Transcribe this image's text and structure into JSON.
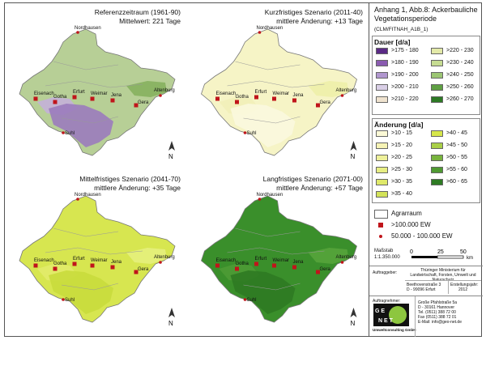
{
  "panels": [
    {
      "title": "Referenzzeitraum (1961-90)",
      "subtitle": "Mittelwert: 221 Tage",
      "fill": "#b7cf96",
      "accent": "#86b05e",
      "south": "#9b7bbd",
      "south2": "#c4b0d8"
    },
    {
      "title": "Kurzfristiges Szenario (2011-40)",
      "subtitle": "mittlere Änderung: +13 Tage",
      "fill": "#f6f4c6",
      "accent": "#eef0a8",
      "south": "#fbf8de",
      "south2": "#f2efb8"
    },
    {
      "title": "Mittelfristiges Szenario (2041-70)",
      "subtitle": "mittlere Änderung: +35 Tage",
      "fill": "#d7e650",
      "accent": "#e6ef7c",
      "south": "#c9dc3c",
      "south2": "#e2eb6a"
    },
    {
      "title": "Langfristiges Szenario (2071-00)",
      "subtitle": "mittlere Änderung: +57 Tage",
      "fill": "#3a8f2b",
      "accent": "#57a43b",
      "south": "#2f7a22",
      "south2": "#4e9b35"
    }
  ],
  "cities": [
    "Nordhausen",
    "Eisenach",
    "Gotha",
    "Erfurt",
    "Weimar",
    "Jena",
    "Gera",
    "Altenburg",
    "Suhl"
  ],
  "north_label": "N",
  "legend": {
    "title": "Anhang 1, Abb.8: Ackerbauliche Vegetationsperiode",
    "model": "(CLM/FITNAH_A1B_1)",
    "dauer_head": "Dauer [d/a]",
    "dauer": [
      {
        "label": ">175 - 180",
        "color": "#5b2a86"
      },
      {
        "label": ">220 - 230",
        "color": "#e3e9a8"
      },
      {
        "label": ">180 - 190",
        "color": "#8a5bb0"
      },
      {
        "label": ">230 - 240",
        "color": "#c6dc92"
      },
      {
        "label": ">190 - 200",
        "color": "#b197cf"
      },
      {
        "label": ">240 - 250",
        "color": "#9cc674"
      },
      {
        "label": ">200 - 210",
        "color": "#d9cfe6"
      },
      {
        "label": ">250 - 260",
        "color": "#5fa043"
      },
      {
        "label": ">210 - 220",
        "color": "#efe3cf"
      },
      {
        "label": ">260 - 270",
        "color": "#2d7a24"
      }
    ],
    "aend_head": "Änderung [d/a]",
    "aend": [
      {
        "label": ">10 - 15",
        "color": "#fbf9d6"
      },
      {
        "label": ">40 - 45",
        "color": "#d6e64a"
      },
      {
        "label": ">15 - 20",
        "color": "#f6f3b5"
      },
      {
        "label": ">45 - 50",
        "color": "#a9cf47"
      },
      {
        "label": ">20 - 25",
        "color": "#eef09a"
      },
      {
        "label": ">50 - 55",
        "color": "#78b43d"
      },
      {
        "label": ">25 - 30",
        "color": "#e7ee83"
      },
      {
        "label": ">55 - 60",
        "color": "#4f9a32"
      },
      {
        "label": ">30 - 35",
        "color": "#dfe96a"
      },
      {
        "label": ">60 - 65",
        "color": "#2e7b23"
      },
      {
        "label": ">35 - 40",
        "color": "#d3e35a"
      }
    ],
    "agrar": "Agrarraum",
    "city_big": ">100.000 EW",
    "city_small": "50.000 - 100.000 EW",
    "massstab": "Maßstab",
    "scale": "1:1.350.000",
    "scale_ticks": [
      "0",
      "25",
      "50"
    ],
    "scale_unit": "km",
    "auftraggeber": "Auftraggeber:",
    "ministry": "Thüringer Ministerium für Landwirtschaft, Forsten, Umwelt und Naturschutz",
    "address": "Beethovenstraße 3\nD - 99096 Erfurt",
    "erstellungsjahr_label": "Erstellungsjahr:",
    "erstellungsjahr": "2012",
    "auftragnehmer": "Auftragnehmer:",
    "geo_net": "GEO-NET",
    "geo_sub": "Umweltconsulting GmbH",
    "geo_address": "Große Pfahlstraße 5a\nD - 30161 Hannover\nTel. (0511) 388 72 00\nFax (0511) 388 72 01\nE-Mail: info@geo-net.de"
  }
}
